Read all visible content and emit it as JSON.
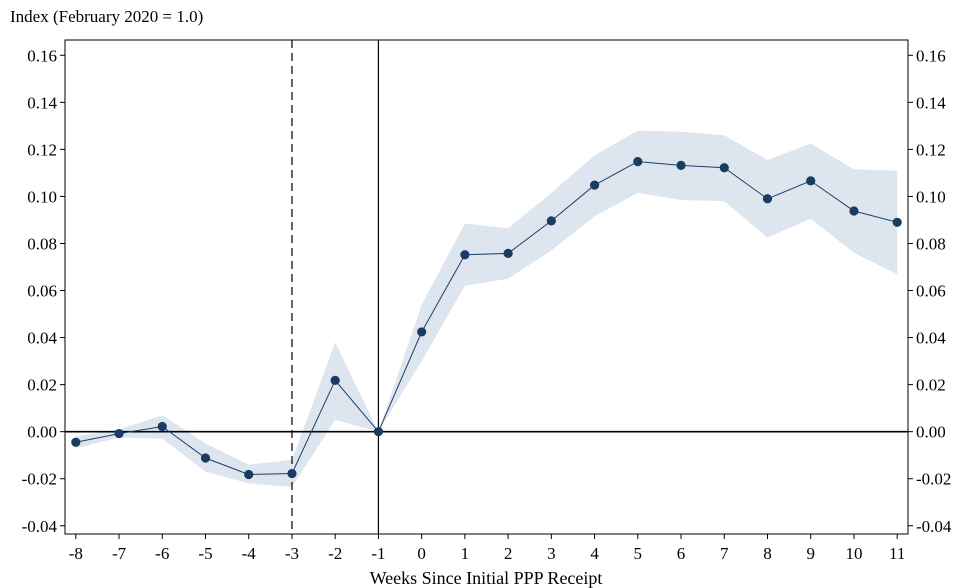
{
  "chart_data": {
    "type": "line",
    "ylabel": "Index (February 2020 = 1.0)",
    "xlabel": "Weeks Since Initial PPP Receipt",
    "x": [
      -8,
      -7,
      -6,
      -5,
      -4,
      -3,
      -2,
      -1,
      0,
      1,
      2,
      3,
      4,
      5,
      6,
      7,
      8,
      9,
      10,
      11
    ],
    "y": [
      -0.0045,
      -0.0008,
      0.0022,
      -0.0112,
      -0.0182,
      -0.0178,
      0.0218,
      0.0,
      0.0424,
      0.0752,
      0.0758,
      0.0896,
      0.1048,
      0.1148,
      0.1132,
      0.1122,
      0.099,
      0.1066,
      0.0938,
      0.089
    ],
    "ci_lower": [
      -0.007,
      -0.0025,
      -0.003,
      -0.017,
      -0.022,
      -0.0235,
      0.005,
      0.0,
      0.03,
      0.062,
      0.065,
      0.077,
      0.0915,
      0.1015,
      0.0985,
      0.098,
      0.0825,
      0.0905,
      0.076,
      0.067
    ],
    "ci_upper": [
      -0.002,
      0.001,
      0.007,
      -0.005,
      -0.014,
      -0.012,
      0.038,
      0.0,
      0.054,
      0.0885,
      0.0865,
      0.1015,
      0.1175,
      0.128,
      0.1275,
      0.126,
      0.1155,
      0.1225,
      0.1115,
      0.111
    ],
    "xticks": [
      "-8",
      "-7",
      "-6",
      "-5",
      "-4",
      "-3",
      "-2",
      "-1",
      "0",
      "1",
      "2",
      "3",
      "4",
      "5",
      "6",
      "7",
      "8",
      "9",
      "10",
      "11"
    ],
    "yticks": [
      "-0.04",
      "-0.02",
      "0.00",
      "0.02",
      "0.04",
      "0.06",
      "0.08",
      "0.10",
      "0.12",
      "0.14",
      "0.16"
    ],
    "ytick_values": [
      -0.04,
      -0.02,
      0.0,
      0.02,
      0.04,
      0.06,
      0.08,
      0.1,
      0.12,
      0.14,
      0.16
    ],
    "xlim": [
      -8.25,
      11.25
    ],
    "ylim": [
      -0.0435,
      0.1665
    ],
    "vlines": [
      {
        "x": -3,
        "style": "dashed"
      },
      {
        "x": -1,
        "style": "solid"
      }
    ],
    "hline": 0,
    "colors": {
      "line": "#1c3f66",
      "marker": "#1a3c63",
      "band": "#dde6ee"
    },
    "grid": false,
    "legend": "none"
  }
}
